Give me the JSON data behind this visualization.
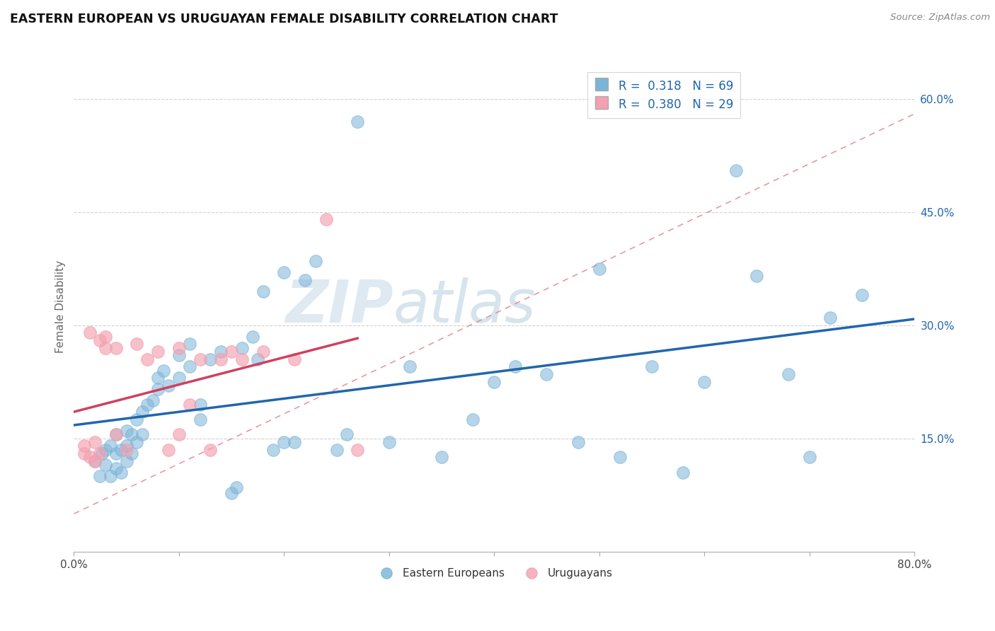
{
  "title": "EASTERN EUROPEAN VS URUGUAYAN FEMALE DISABILITY CORRELATION CHART",
  "source_text": "Source: ZipAtlas.com",
  "ylabel": "Female Disability",
  "xlim": [
    0.0,
    0.8
  ],
  "ylim": [
    0.0,
    0.65
  ],
  "ytick_right_labels": [
    "15.0%",
    "30.0%",
    "45.0%",
    "60.0%"
  ],
  "ytick_right_values": [
    0.15,
    0.3,
    0.45,
    0.6
  ],
  "blue_color": "#7ab4d8",
  "blue_line_color": "#2166ac",
  "pink_color": "#f4a0b0",
  "pink_line_color": "#d04060",
  "dashed_line_color": "#e08090",
  "legend_r1": "R =  0.318",
  "legend_n1": "N = 69",
  "legend_r2": "R =  0.380",
  "legend_n2": "N = 29",
  "watermark_zip": "ZIP",
  "watermark_atlas": "atlas",
  "legend_labels": [
    "Eastern Europeans",
    "Uruguayans"
  ],
  "blue_R": 0.318,
  "pink_R": 0.38,
  "blue_scatter_x": [
    0.02,
    0.025,
    0.027,
    0.03,
    0.03,
    0.035,
    0.035,
    0.04,
    0.04,
    0.04,
    0.045,
    0.045,
    0.05,
    0.05,
    0.05,
    0.055,
    0.055,
    0.06,
    0.06,
    0.065,
    0.065,
    0.07,
    0.075,
    0.08,
    0.08,
    0.085,
    0.09,
    0.1,
    0.1,
    0.11,
    0.11,
    0.12,
    0.12,
    0.13,
    0.14,
    0.15,
    0.155,
    0.16,
    0.17,
    0.175,
    0.18,
    0.19,
    0.2,
    0.2,
    0.21,
    0.22,
    0.23,
    0.25,
    0.26,
    0.27,
    0.3,
    0.32,
    0.35,
    0.38,
    0.4,
    0.42,
    0.45,
    0.48,
    0.5,
    0.52,
    0.55,
    0.58,
    0.6,
    0.63,
    0.65,
    0.68,
    0.7,
    0.72,
    0.75
  ],
  "blue_scatter_y": [
    0.12,
    0.1,
    0.13,
    0.115,
    0.135,
    0.1,
    0.14,
    0.11,
    0.13,
    0.155,
    0.105,
    0.135,
    0.12,
    0.14,
    0.16,
    0.13,
    0.155,
    0.145,
    0.175,
    0.155,
    0.185,
    0.195,
    0.2,
    0.23,
    0.215,
    0.24,
    0.22,
    0.23,
    0.26,
    0.245,
    0.275,
    0.175,
    0.195,
    0.255,
    0.265,
    0.077,
    0.085,
    0.27,
    0.285,
    0.255,
    0.345,
    0.135,
    0.145,
    0.37,
    0.145,
    0.36,
    0.385,
    0.135,
    0.155,
    0.57,
    0.145,
    0.245,
    0.125,
    0.175,
    0.225,
    0.245,
    0.235,
    0.145,
    0.375,
    0.125,
    0.245,
    0.105,
    0.225,
    0.505,
    0.365,
    0.235,
    0.125,
    0.31,
    0.34
  ],
  "pink_scatter_x": [
    0.01,
    0.01,
    0.015,
    0.015,
    0.02,
    0.02,
    0.025,
    0.025,
    0.03,
    0.03,
    0.04,
    0.04,
    0.05,
    0.06,
    0.07,
    0.08,
    0.09,
    0.1,
    0.1,
    0.11,
    0.12,
    0.13,
    0.14,
    0.15,
    0.16,
    0.18,
    0.21,
    0.24,
    0.27
  ],
  "pink_scatter_y": [
    0.13,
    0.14,
    0.125,
    0.29,
    0.12,
    0.145,
    0.13,
    0.28,
    0.27,
    0.285,
    0.155,
    0.27,
    0.135,
    0.275,
    0.255,
    0.265,
    0.135,
    0.27,
    0.155,
    0.195,
    0.255,
    0.135,
    0.255,
    0.265,
    0.255,
    0.265,
    0.255,
    0.44,
    0.135
  ]
}
